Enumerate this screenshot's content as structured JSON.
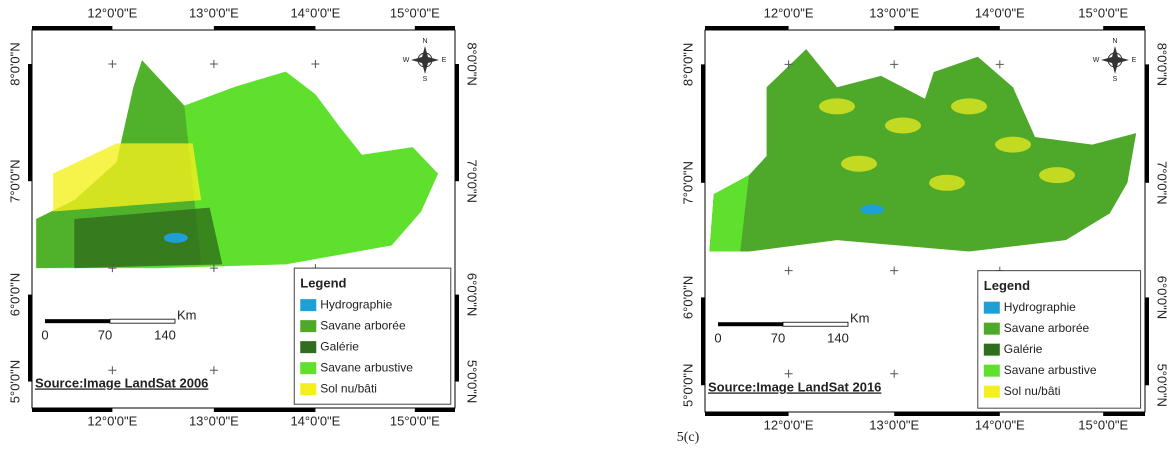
{
  "maps": [
    {
      "lon_labels": [
        "12°0'0\"E",
        "13°0'0\"E",
        "14°0'0\"E",
        "15°0'0\"E"
      ],
      "lat_labels": [
        "8°0'0\"N",
        "7°0'0\"N",
        "6°0'0\"N",
        "5°0'0\"N"
      ],
      "compass": {
        "n": "N",
        "s": "S",
        "e": "E",
        "w": "W"
      },
      "legend": {
        "title": "Legend",
        "items": [
          {
            "label": "Hydrographie",
            "color": "#1e9fd6"
          },
          {
            "label": "Savane arborée",
            "color": "#4ea82a"
          },
          {
            "label": "Galérie",
            "color": "#2f6e1c"
          },
          {
            "label": "Savane arbustive",
            "color": "#5ee02c"
          },
          {
            "label": "Sol nu/bâti",
            "color": "#f4f01e"
          }
        ]
      },
      "scale": {
        "unit": "Km",
        "ticks": [
          0,
          70,
          140
        ]
      },
      "source": "Source:Image LandSat 2006"
    },
    {
      "lon_labels": [
        "12°0'0\"E",
        "13°0'0\"E",
        "14°0'0\"E",
        "15°0'0\"E"
      ],
      "lat_labels": [
        "8°0'0\"N",
        "7°0'0\"N",
        "6°0'0\"N",
        "5°0'0\"N"
      ],
      "compass": {
        "n": "N",
        "s": "S",
        "e": "E",
        "w": "W"
      },
      "legend": {
        "title": "Legend",
        "items": [
          {
            "label": "Hydrographie",
            "color": "#1e9fd6"
          },
          {
            "label": "Savane arborée",
            "color": "#4ea82a"
          },
          {
            "label": "Galérie",
            "color": "#2f6e1c"
          },
          {
            "label": "Savane arbustive",
            "color": "#5ee02c"
          },
          {
            "label": "Sol nu/bâti",
            "color": "#f4f01e"
          }
        ]
      },
      "scale": {
        "unit": "Km",
        "ticks": [
          0,
          70,
          140
        ]
      },
      "source": "Source:Image LandSat 2016"
    }
  ],
  "caption": "5(c)"
}
